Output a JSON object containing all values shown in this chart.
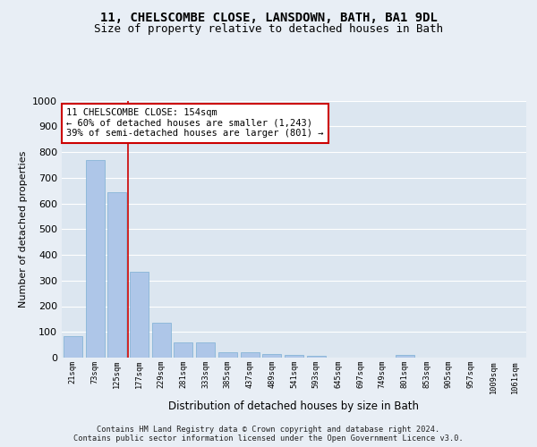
{
  "title_line1": "11, CHELSCOMBE CLOSE, LANSDOWN, BATH, BA1 9DL",
  "title_line2": "Size of property relative to detached houses in Bath",
  "xlabel": "Distribution of detached houses by size in Bath",
  "ylabel": "Number of detached properties",
  "footer": "Contains HM Land Registry data © Crown copyright and database right 2024.\nContains public sector information licensed under the Open Government Licence v3.0.",
  "categories": [
    "21sqm",
    "73sqm",
    "125sqm",
    "177sqm",
    "229sqm",
    "281sqm",
    "333sqm",
    "385sqm",
    "437sqm",
    "489sqm",
    "541sqm",
    "593sqm",
    "645sqm",
    "697sqm",
    "749sqm",
    "801sqm",
    "853sqm",
    "905sqm",
    "957sqm",
    "1009sqm",
    "1061sqm"
  ],
  "values": [
    85,
    770,
    645,
    335,
    135,
    60,
    60,
    20,
    20,
    15,
    10,
    6,
    0,
    0,
    0,
    10,
    0,
    0,
    0,
    0,
    0
  ],
  "bar_color": "#aec6e8",
  "bar_edge_color": "#7bafd4",
  "vline_x": 2.5,
  "vline_color": "#cc0000",
  "annotation_text": "11 CHELSCOMBE CLOSE: 154sqm\n← 60% of detached houses are smaller (1,243)\n39% of semi-detached houses are larger (801) →",
  "annotation_box_color": "#ffffff",
  "annotation_box_edge": "#cc0000",
  "ylim": [
    0,
    1000
  ],
  "yticks": [
    0,
    100,
    200,
    300,
    400,
    500,
    600,
    700,
    800,
    900,
    1000
  ],
  "background_color": "#e8eef5",
  "plot_bg_color": "#dce6f0",
  "grid_color": "#ffffff",
  "title_fontsize": 10,
  "subtitle_fontsize": 9
}
